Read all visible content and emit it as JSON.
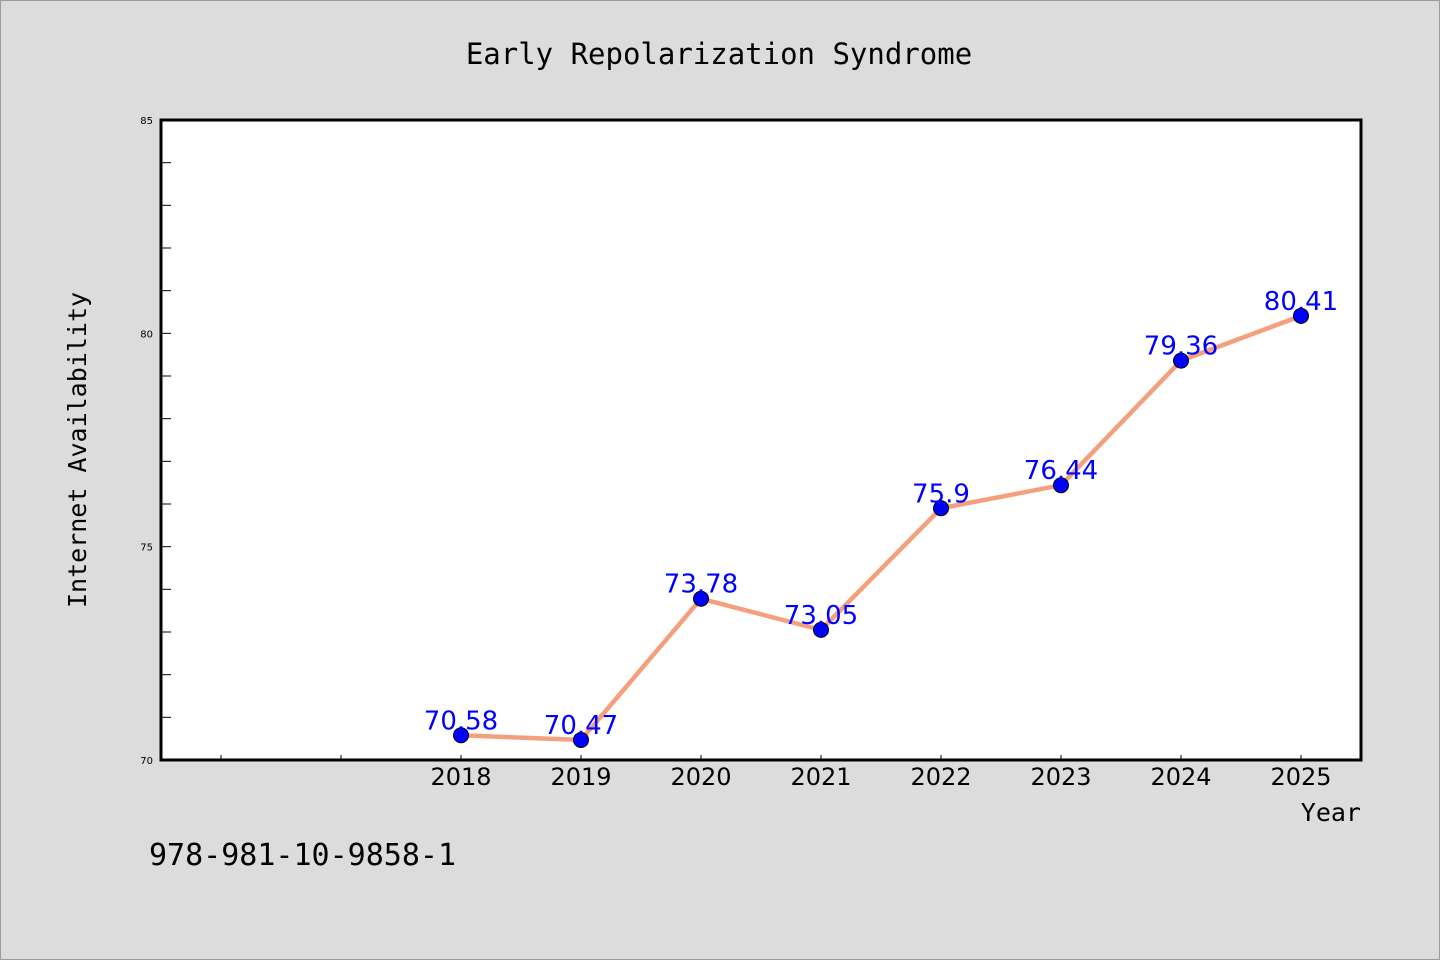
{
  "chart_data": {
    "type": "line",
    "title": "Early Repolarization Syndrome",
    "xlabel": "Year",
    "ylabel": "Internet Availability",
    "categories": [
      "2018",
      "2019",
      "2020",
      "2021",
      "2022",
      "2023",
      "2024",
      "2025"
    ],
    "series": [
      {
        "values": [
          70.58,
          70.47,
          73.78,
          73.05,
          75.9,
          76.44,
          79.36,
          80.41
        ],
        "labels": [
          "70.58",
          "70.47",
          "73.78",
          "73.05",
          "75.9",
          "76.44",
          "79.36",
          "80.41"
        ],
        "line_color": "#f4a07e",
        "marker_color": "#0000ff"
      }
    ],
    "ylim": [
      70,
      85
    ],
    "yticks": [
      "70",
      "75",
      "80",
      "85"
    ],
    "grid": false,
    "legend": "none"
  },
  "footer": {
    "isbn": "978-981-10-9858-1"
  },
  "colors": {
    "background": "#dcdcdc",
    "plot_background": "#ffffff",
    "data_label": "#0000ff"
  }
}
